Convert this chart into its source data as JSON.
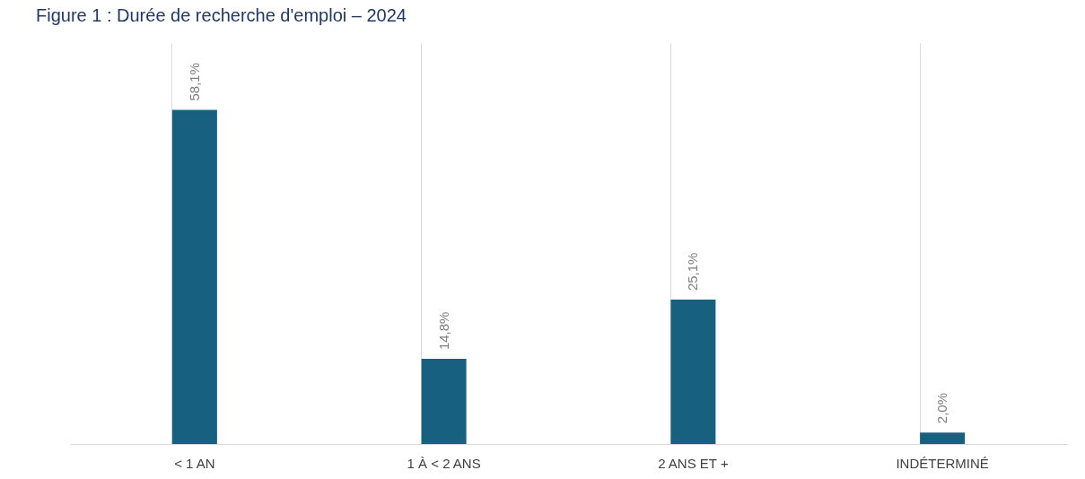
{
  "chart_data": {
    "type": "bar",
    "title": "Figure 1 : Durée de recherche d'emploi – 2024",
    "categories": [
      "< 1 AN",
      "1 À < 2 ANS",
      "2 ANS ET +",
      "INDÉTERMINÉ"
    ],
    "values": [
      58.1,
      14.8,
      25.1,
      2.0
    ],
    "value_labels": [
      "58,1%",
      "14,8%",
      "25,1%",
      "2,0%"
    ],
    "color": "#17607f",
    "grid": "x"
  }
}
